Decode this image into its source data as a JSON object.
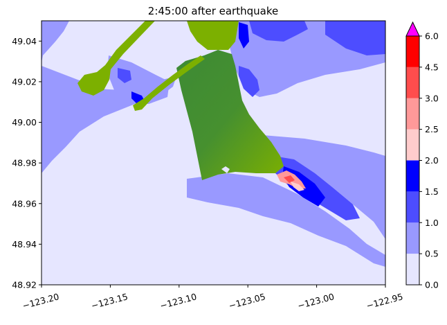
{
  "chart_data": {
    "type": "heatmap",
    "title": "2:45:00 after earthquake",
    "xlabel": "",
    "ylabel": "",
    "xlim": [
      -123.2,
      -122.95
    ],
    "ylim": [
      48.92,
      49.05
    ],
    "xticks": [
      -123.2,
      -123.15,
      -123.1,
      -123.05,
      -123.0,
      -122.95
    ],
    "xtick_labels": [
      "−123.20",
      "−123.15",
      "−123.10",
      "−123.05",
      "−123.00",
      "−122.95"
    ],
    "yticks": [
      48.92,
      48.94,
      48.96,
      48.98,
      49.0,
      49.02,
      49.04
    ],
    "ytick_labels": [
      "48.92",
      "48.94",
      "48.96",
      "48.98",
      "49.00",
      "49.02",
      "49.04"
    ],
    "colorbar": {
      "levels": [
        0.0,
        0.5,
        1.0,
        1.5,
        2.0,
        2.5,
        3.0,
        4.5,
        6.0
      ],
      "tick_labels": [
        "0.0",
        "0.5",
        "1.0",
        "1.5",
        "2.0",
        "2.5",
        "3.0",
        "4.5",
        "6.0"
      ],
      "colors": [
        "#e6e6ff",
        "#9999ff",
        "#4d4dff",
        "#0000ff",
        "#ffcccc",
        "#ff9999",
        "#ff4d4d",
        "#ff0000"
      ],
      "extend_max_color": "#ff00ff"
    },
    "colors": {
      "water_background": "#e6e6ff",
      "land_dark": "#3d8a35",
      "land_light": "#7cb000"
    }
  }
}
